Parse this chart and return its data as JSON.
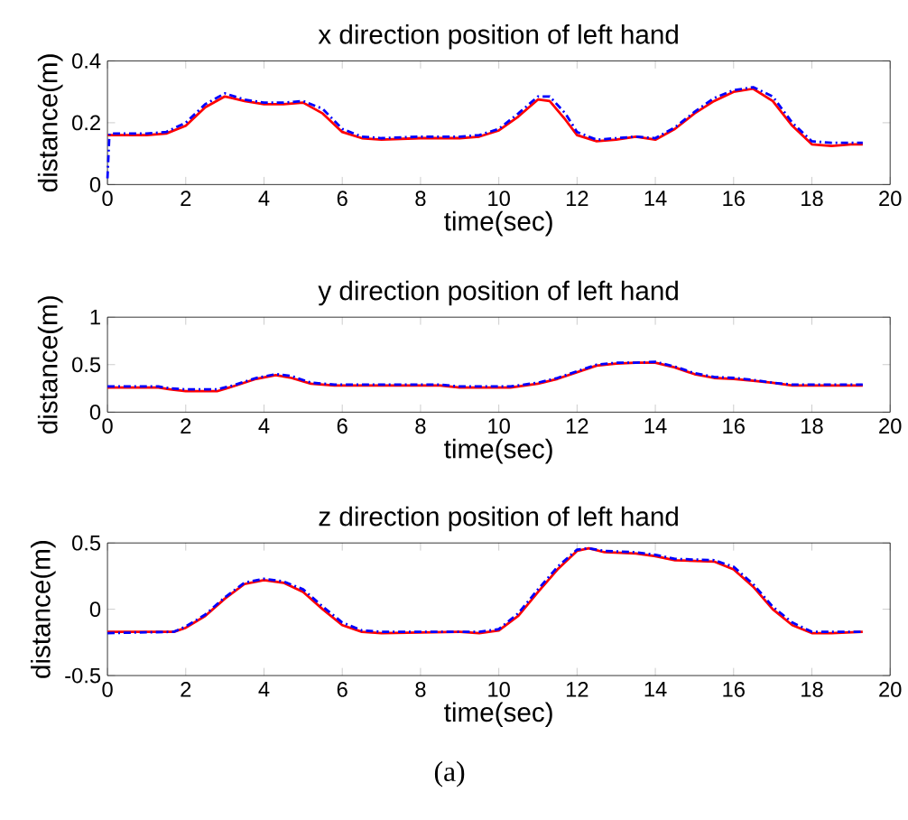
{
  "chart_data": [
    {
      "type": "line",
      "title": "x direction position of left hand",
      "xlabel": "time(sec)",
      "ylabel": "distance(m)",
      "xlim": [
        0,
        20
      ],
      "ylim": [
        0,
        0.4
      ],
      "xticks": [
        0,
        2,
        4,
        6,
        8,
        10,
        12,
        14,
        16,
        18,
        20
      ],
      "yticks": [
        0,
        0.2,
        0.4
      ],
      "series": [
        {
          "color": "#ff0000",
          "line_style": "solid",
          "x": [
            0,
            1,
            1.5,
            2,
            2.5,
            3,
            3.5,
            4,
            4.5,
            5,
            5.5,
            6,
            6.5,
            7,
            8,
            9,
            9.5,
            10,
            10.5,
            11,
            11.3,
            11.7,
            12,
            12.5,
            13,
            13.5,
            14,
            14.5,
            15,
            15.5,
            16,
            16.5,
            17,
            17.5,
            18,
            18.5,
            19,
            19.3
          ],
          "values": [
            0.16,
            0.16,
            0.165,
            0.19,
            0.25,
            0.285,
            0.27,
            0.26,
            0.26,
            0.265,
            0.23,
            0.17,
            0.15,
            0.145,
            0.15,
            0.15,
            0.155,
            0.175,
            0.22,
            0.275,
            0.27,
            0.21,
            0.16,
            0.14,
            0.145,
            0.155,
            0.145,
            0.18,
            0.23,
            0.27,
            0.3,
            0.31,
            0.27,
            0.19,
            0.13,
            0.125,
            0.13,
            0.13
          ]
        },
        {
          "color": "#0000ff",
          "line_style": "dashed",
          "x": [
            0,
            0.05,
            1,
            1.5,
            2,
            2.5,
            3,
            3.5,
            4,
            4.5,
            5,
            5.5,
            6,
            6.5,
            7,
            8,
            9,
            9.5,
            10,
            10.5,
            11,
            11.3,
            11.7,
            12,
            12.5,
            13,
            13.5,
            14,
            14.5,
            15,
            15.5,
            16,
            16.5,
            17,
            17.5,
            18,
            18.5,
            19,
            19.3
          ],
          "values": [
            0.02,
            0.165,
            0.165,
            0.17,
            0.2,
            0.26,
            0.295,
            0.275,
            0.265,
            0.265,
            0.27,
            0.245,
            0.18,
            0.155,
            0.15,
            0.155,
            0.155,
            0.16,
            0.18,
            0.23,
            0.285,
            0.285,
            0.23,
            0.17,
            0.145,
            0.15,
            0.155,
            0.15,
            0.185,
            0.235,
            0.28,
            0.305,
            0.315,
            0.285,
            0.2,
            0.14,
            0.135,
            0.135,
            0.135
          ]
        }
      ]
    },
    {
      "type": "line",
      "title": "y direction position of left hand",
      "xlabel": "time(sec)",
      "ylabel": "distance(m)",
      "xlim": [
        0,
        20
      ],
      "ylim": [
        0,
        1
      ],
      "xticks": [
        0,
        2,
        4,
        6,
        8,
        10,
        12,
        14,
        16,
        18,
        20
      ],
      "yticks": [
        0,
        0.5,
        1
      ],
      "series": [
        {
          "color": "#ff0000",
          "line_style": "solid",
          "x": [
            0,
            1.3,
            1.6,
            2,
            2.8,
            3.2,
            3.8,
            4.3,
            4.7,
            5.2,
            5.8,
            8.5,
            9,
            10.3,
            11,
            11.5,
            12,
            12.5,
            13,
            13.5,
            14,
            14.5,
            15,
            15.5,
            16,
            16.5,
            17,
            17.5,
            19.3
          ],
          "values": [
            0.26,
            0.26,
            0.24,
            0.22,
            0.22,
            0.27,
            0.35,
            0.39,
            0.36,
            0.3,
            0.28,
            0.28,
            0.26,
            0.26,
            0.3,
            0.35,
            0.42,
            0.49,
            0.51,
            0.52,
            0.52,
            0.47,
            0.4,
            0.36,
            0.35,
            0.33,
            0.31,
            0.28,
            0.28
          ]
        },
        {
          "color": "#0000ff",
          "line_style": "dashed",
          "x": [
            0,
            1.3,
            1.6,
            2,
            2.8,
            3.2,
            3.8,
            4.3,
            4.7,
            5.2,
            5.8,
            8.5,
            9,
            10.3,
            11,
            11.5,
            12,
            12.5,
            13,
            13.5,
            14,
            14.5,
            15,
            15.5,
            16,
            16.5,
            17,
            17.5,
            19.3
          ],
          "values": [
            0.27,
            0.27,
            0.25,
            0.24,
            0.24,
            0.28,
            0.36,
            0.4,
            0.38,
            0.31,
            0.29,
            0.29,
            0.27,
            0.27,
            0.31,
            0.36,
            0.43,
            0.5,
            0.52,
            0.52,
            0.53,
            0.48,
            0.41,
            0.37,
            0.36,
            0.34,
            0.31,
            0.29,
            0.29
          ]
        }
      ]
    },
    {
      "type": "line",
      "title": "z direction position of left hand",
      "xlabel": "time(sec)",
      "ylabel": "distance(m)",
      "xlim": [
        0,
        20
      ],
      "ylim": [
        -0.5,
        0.5
      ],
      "xticks": [
        0,
        2,
        4,
        6,
        8,
        10,
        12,
        14,
        16,
        18,
        20
      ],
      "yticks": [
        -0.5,
        0,
        0.5
      ],
      "annotations": [
        "(a)"
      ],
      "series": [
        {
          "color": "#ff0000",
          "line_style": "solid",
          "x": [
            0,
            1.7,
            2,
            2.5,
            3,
            3.5,
            4,
            4.5,
            5,
            5.5,
            6,
            6.5,
            7,
            9,
            9.5,
            10,
            10.5,
            11,
            11.5,
            12,
            12.3,
            12.7,
            13.5,
            14,
            14.5,
            15.5,
            16,
            16.5,
            17,
            17.5,
            18,
            18.5,
            19.3
          ],
          "values": [
            -0.17,
            -0.17,
            -0.14,
            -0.05,
            0.08,
            0.19,
            0.22,
            0.2,
            0.13,
            0.0,
            -0.12,
            -0.17,
            -0.18,
            -0.17,
            -0.18,
            -0.16,
            -0.05,
            0.13,
            0.3,
            0.44,
            0.46,
            0.43,
            0.42,
            0.4,
            0.37,
            0.36,
            0.3,
            0.17,
            0.0,
            -0.12,
            -0.18,
            -0.18,
            -0.17
          ]
        },
        {
          "color": "#0000ff",
          "line_style": "dashed",
          "x": [
            0,
            1.7,
            2,
            2.5,
            3,
            3.5,
            4,
            4.5,
            5,
            5.5,
            6,
            6.5,
            7,
            9,
            9.5,
            10,
            10.5,
            11,
            11.5,
            12,
            12.3,
            12.7,
            13.5,
            14,
            14.5,
            15.5,
            16,
            16.5,
            17,
            17.5,
            18,
            18.5,
            19.3
          ],
          "values": [
            -0.18,
            -0.17,
            -0.13,
            -0.04,
            0.09,
            0.2,
            0.23,
            0.21,
            0.15,
            0.02,
            -0.1,
            -0.16,
            -0.17,
            -0.17,
            -0.17,
            -0.15,
            -0.03,
            0.15,
            0.32,
            0.45,
            0.46,
            0.44,
            0.43,
            0.41,
            0.38,
            0.37,
            0.32,
            0.19,
            0.02,
            -0.1,
            -0.17,
            -0.17,
            -0.17
          ]
        }
      ]
    }
  ]
}
